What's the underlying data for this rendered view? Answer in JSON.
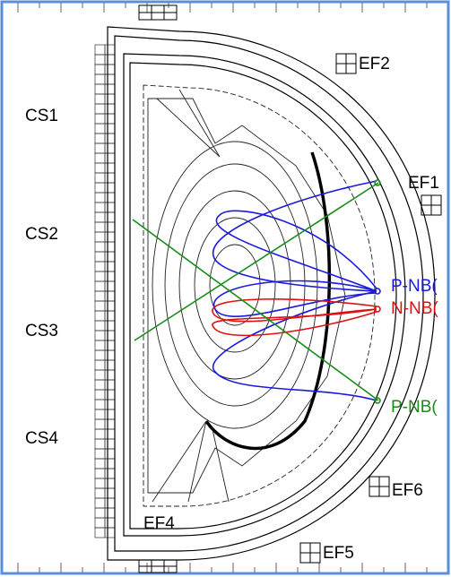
{
  "labels": {
    "cs1": "CS1",
    "cs2": "CS2",
    "cs3": "CS3",
    "cs4": "CS4",
    "ef1": "EF1",
    "ef2": "EF2",
    "ef4": "EF4",
    "ef5": "EF5",
    "ef6": "EF6",
    "pnb_upper": "P-NB(",
    "nnb": "N-NB(",
    "pnb_lower": "P-NB("
  }
}
